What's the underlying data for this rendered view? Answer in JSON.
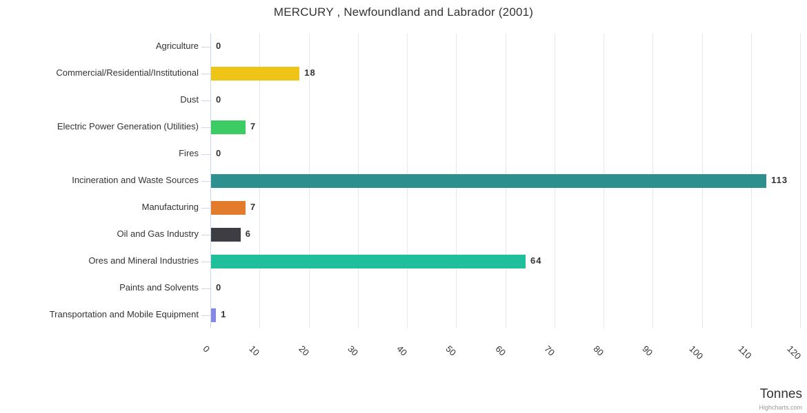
{
  "chart": {
    "title": "MERCURY , Newfoundland and Labrador (2001)",
    "xlabel": "Tonnes",
    "credit": "Highcharts.com"
  },
  "chart_data": {
    "type": "bar",
    "orientation": "horizontal",
    "title": "MERCURY , Newfoundland and Labrador (2001)",
    "categories": [
      "Agriculture",
      "Commercial/Residential/Institutional",
      "Dust",
      "Electric Power Generation (Utilities)",
      "Fires",
      "Incineration and Waste Sources",
      "Manufacturing",
      "Oil and Gas Industry",
      "Ores and Mineral Industries",
      "Paints and Solvents",
      "Transportation and Mobile Equipment"
    ],
    "values": [
      0,
      18,
      0,
      7,
      0,
      113,
      7,
      6,
      64,
      0,
      1
    ],
    "bar_colors": [
      null,
      "#eec417",
      null,
      "#3dcb63",
      null,
      "#2d908e",
      "#e37b2c",
      "#3e3d43",
      "#1fbf9c",
      null,
      "#8487e6"
    ],
    "xlabel": "Tonnes",
    "xlim": [
      0,
      120
    ],
    "xticks": [
      0,
      10,
      20,
      30,
      40,
      50,
      60,
      70,
      80,
      90,
      100,
      110,
      120
    ],
    "xtick_rotation": 45,
    "grid": true,
    "grid_color": "#e6e6e6",
    "axis_line_color": "#ccd6eb",
    "value_labels": true,
    "legend": false
  }
}
